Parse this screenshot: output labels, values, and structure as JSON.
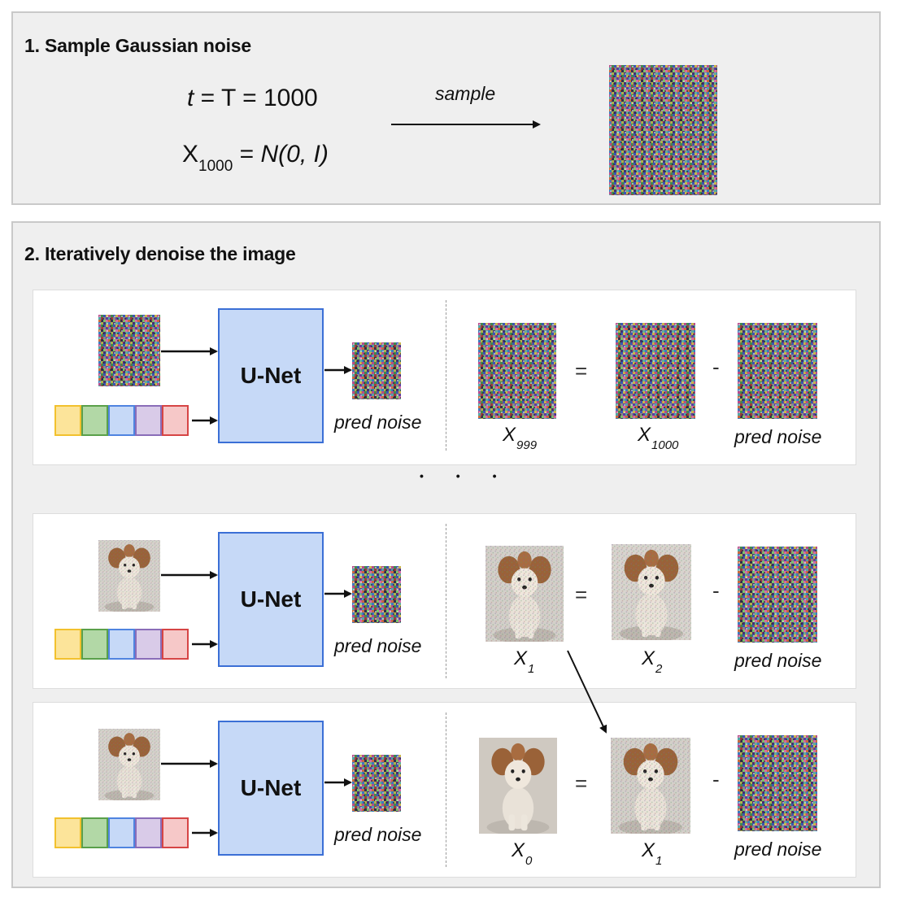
{
  "colors": {
    "panel_bg": "#efefef",
    "unet_fill": "#c6d9f7",
    "unet_border": "#3b6fd6",
    "tokens": [
      {
        "fill": "#fce49a",
        "border": "#f2c12e"
      },
      {
        "fill": "#b2d8a6",
        "border": "#5aa04a"
      },
      {
        "fill": "#c6d9f7",
        "border": "#4f84e0"
      },
      {
        "fill": "#d9cbe8",
        "border": "#8a6db8"
      },
      {
        "fill": "#f6c8c8",
        "border": "#d64545"
      }
    ]
  },
  "section1": {
    "title": "1. Sample Gaussian noise",
    "t_var": "t",
    "t_rest": " = T = 1000",
    "x_var": "X",
    "x_sub": "1000",
    "x_rest": " = ",
    "x_dist": "N(0, I)",
    "arrow_label": "sample"
  },
  "section2": {
    "title": "2. Iteratively denoise the image",
    "ellipsis": "• • •",
    "rows": [
      {
        "unet_label": "U-Net",
        "pred_label": "pred noise",
        "eq_sign": "=",
        "minus_sign": "-",
        "lhs": {
          "var": "X",
          "sub": "999"
        },
        "mid": {
          "var": "X",
          "sub": "1000"
        },
        "rhs": "pred noise"
      },
      {
        "unet_label": "U-Net",
        "pred_label": "pred noise",
        "eq_sign": "=",
        "minus_sign": "-",
        "lhs": {
          "var": "X",
          "sub": "1"
        },
        "mid": {
          "var": "X",
          "sub": "2"
        },
        "rhs": "pred noise"
      },
      {
        "unet_label": "U-Net",
        "pred_label": "pred noise",
        "eq_sign": "=",
        "minus_sign": "-",
        "lhs": {
          "var": "X",
          "sub": "0"
        },
        "mid": {
          "var": "X",
          "sub": "1"
        },
        "rhs": "pred noise"
      }
    ]
  },
  "image_semantics": {
    "noise": "gaussian-noise-image",
    "dog": "small-dog-photo"
  }
}
